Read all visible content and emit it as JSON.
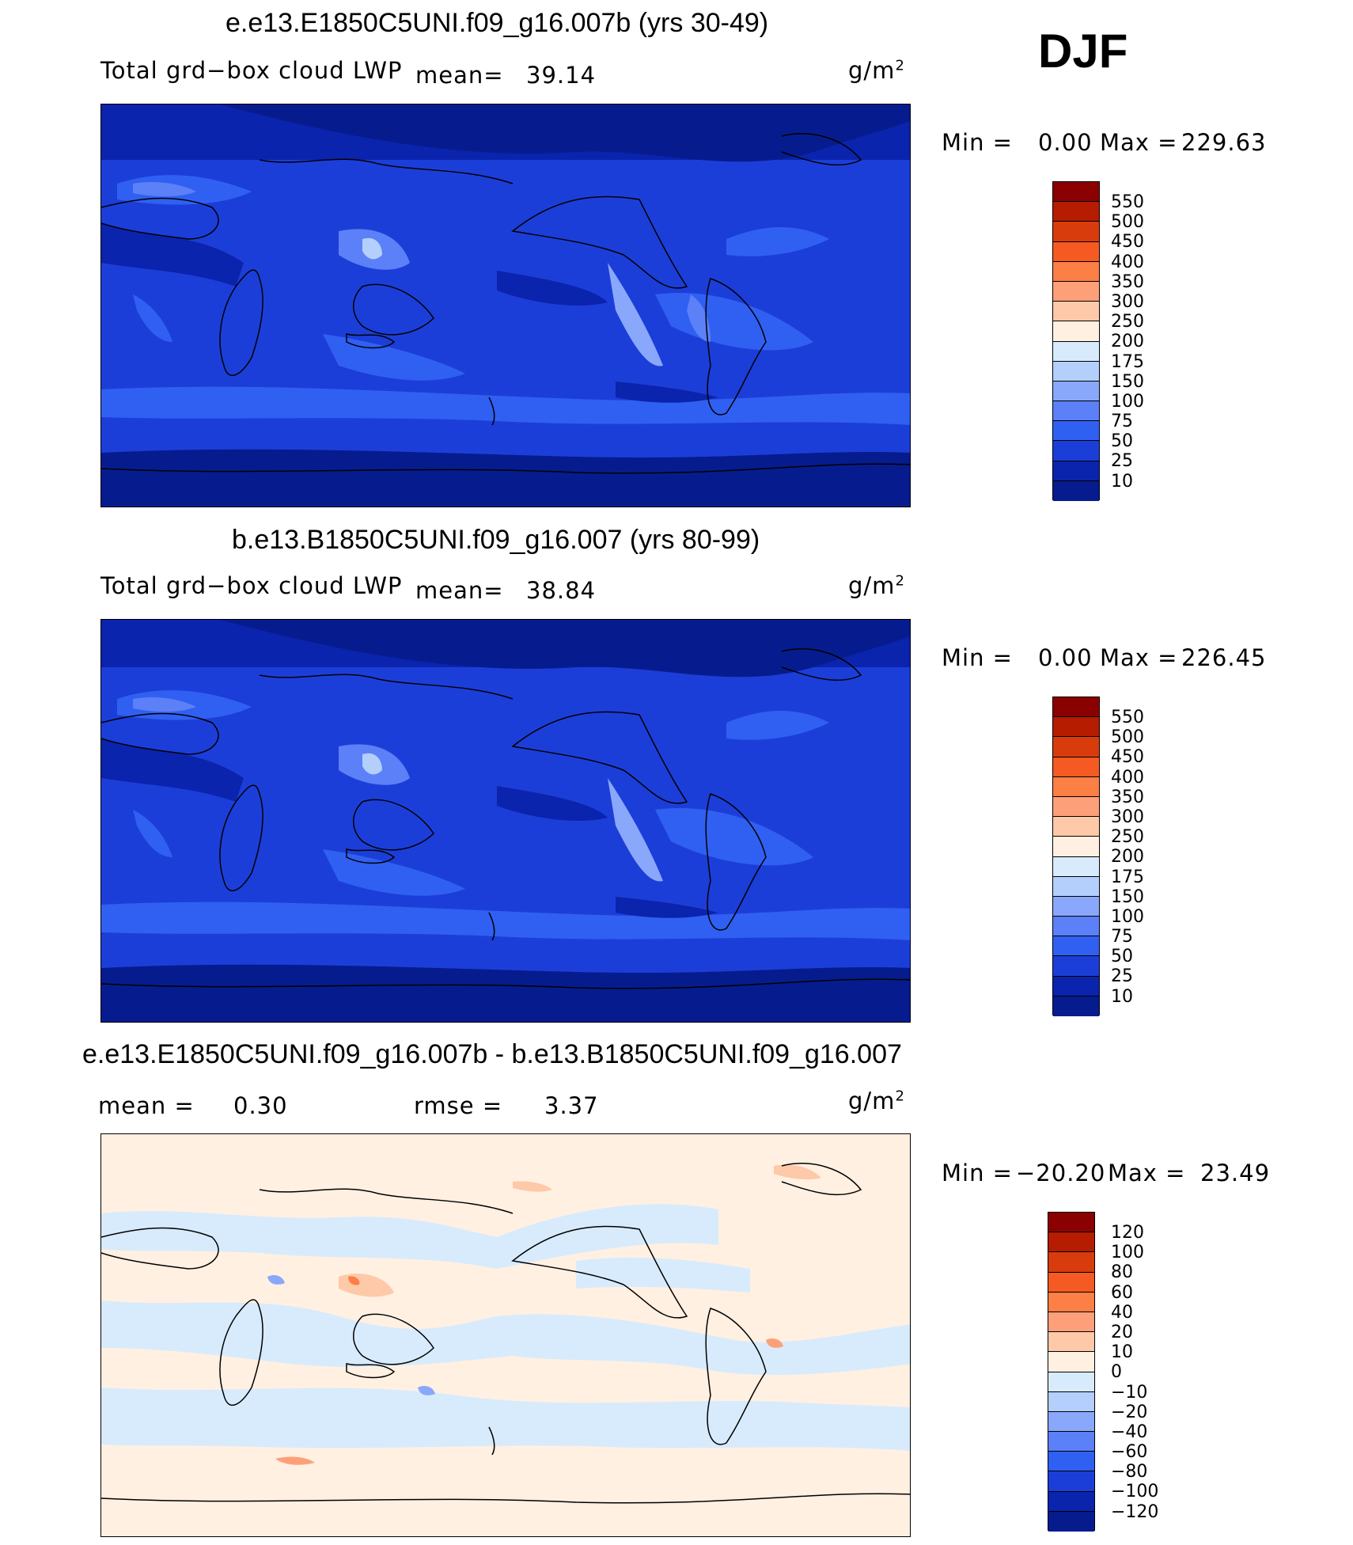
{
  "season": "DJF",
  "units_label": "g/m",
  "units_sup": "2",
  "panels": [
    {
      "title": "e.e13.E1850C5UNI.f09_g16.007b (yrs 30-49)",
      "variable": "Total grd−box cloud LWP",
      "mean_label": "mean=",
      "mean_value": "39.14",
      "min_label": "Min =",
      "min_value": "0.00",
      "max_label": "Max =",
      "max_value": "229.63",
      "colorbar": {
        "levels": [
          "550",
          "500",
          "450",
          "400",
          "350",
          "300",
          "250",
          "200",
          "175",
          "150",
          "100",
          "75",
          "50",
          "25",
          "10"
        ],
        "colors": [
          "#8b0000",
          "#b51c00",
          "#d83c0c",
          "#f45a22",
          "#fc7f45",
          "#fda07a",
          "#fdc9a8",
          "#fff0e2",
          "#d8ebfc",
          "#b4cffc",
          "#89a8fb",
          "#5b80f8",
          "#3060f2",
          "#1c3ed8",
          "#0b24ad",
          "#061c8e"
        ]
      },
      "chart_data": {
        "type": "heatmap",
        "title": "e.e13.E1850C5UNI.f09_g16.007b (yrs 30-49)",
        "variable": "Total grd-box cloud LWP",
        "units": "g/m2",
        "mean": 39.14,
        "min": 0.0,
        "max": 229.63,
        "contour_levels": [
          10,
          25,
          50,
          75,
          100,
          150,
          175,
          200,
          250,
          300,
          350,
          400,
          450,
          500,
          550
        ]
      }
    },
    {
      "title": "b.e13.B1850C5UNI.f09_g16.007 (yrs 80-99)",
      "variable": "Total grd−box cloud LWP",
      "mean_label": "mean=",
      "mean_value": "38.84",
      "min_label": "Min =",
      "min_value": "0.00",
      "max_label": "Max =",
      "max_value": "226.45",
      "colorbar": {
        "levels": [
          "550",
          "500",
          "450",
          "400",
          "350",
          "300",
          "250",
          "200",
          "175",
          "150",
          "100",
          "75",
          "50",
          "25",
          "10"
        ],
        "colors": [
          "#8b0000",
          "#b51c00",
          "#d83c0c",
          "#f45a22",
          "#fc7f45",
          "#fda07a",
          "#fdc9a8",
          "#fff0e2",
          "#d8ebfc",
          "#b4cffc",
          "#89a8fb",
          "#5b80f8",
          "#3060f2",
          "#1c3ed8",
          "#0b24ad",
          "#061c8e"
        ]
      },
      "chart_data": {
        "type": "heatmap",
        "title": "b.e13.B1850C5UNI.f09_g16.007 (yrs 80-99)",
        "variable": "Total grd-box cloud LWP",
        "units": "g/m2",
        "mean": 38.84,
        "min": 0.0,
        "max": 226.45,
        "contour_levels": [
          10,
          25,
          50,
          75,
          100,
          150,
          175,
          200,
          250,
          300,
          350,
          400,
          450,
          500,
          550
        ]
      }
    },
    {
      "title": "e.e13.E1850C5UNI.f09_g16.007b - b.e13.B1850C5UNI.f09_g16.007",
      "mean_label": "mean =",
      "mean_value": "0.30",
      "rmse_label": "rmse =",
      "rmse_value": "3.37",
      "min_label": "Min =",
      "min_value": "−20.20",
      "max_label": "Max =",
      "max_value": "23.49",
      "colorbar": {
        "levels": [
          "120",
          "100",
          "80",
          "60",
          "40",
          "20",
          "10",
          "0",
          "−10",
          "−20",
          "−40",
          "−60",
          "−80",
          "−100",
          "−120"
        ],
        "colors": [
          "#8b0000",
          "#b51c00",
          "#d83c0c",
          "#f45a22",
          "#fc7f45",
          "#fda07a",
          "#fdc9a8",
          "#fff0e2",
          "#d8ebfc",
          "#b4cffc",
          "#89a8fb",
          "#5b80f8",
          "#3060f2",
          "#1c3ed8",
          "#0b24ad",
          "#061c8e"
        ]
      },
      "chart_data": {
        "type": "heatmap",
        "title": "e.e13.E1850C5UNI.f09_g16.007b - b.e13.B1850C5UNI.f09_g16.007",
        "units": "g/m2",
        "mean": 0.3,
        "rmse": 3.37,
        "min": -20.2,
        "max": 23.49,
        "contour_levels": [
          -120,
          -100,
          -80,
          -60,
          -40,
          -20,
          -10,
          0,
          10,
          20,
          40,
          60,
          80,
          100,
          120
        ]
      }
    }
  ],
  "chart_data": [
    {
      "type": "heatmap",
      "title": "e.e13.E1850C5UNI.f09_g16.007b (yrs 30-49)",
      "variable": "Total grd-box cloud LWP",
      "units": "g/m2",
      "mean": 39.14,
      "min": 0.0,
      "max": 229.63,
      "contour_levels": [
        10,
        25,
        50,
        75,
        100,
        150,
        175,
        200,
        250,
        300,
        350,
        400,
        450,
        500,
        550
      ]
    },
    {
      "type": "heatmap",
      "title": "b.e13.B1850C5UNI.f09_g16.007 (yrs 80-99)",
      "variable": "Total grd-box cloud LWP",
      "units": "g/m2",
      "mean": 38.84,
      "min": 0.0,
      "max": 226.45,
      "contour_levels": [
        10,
        25,
        50,
        75,
        100,
        150,
        175,
        200,
        250,
        300,
        350,
        400,
        450,
        500,
        550
      ]
    },
    {
      "type": "heatmap",
      "title": "e.e13.E1850C5UNI.f09_g16.007b - b.e13.B1850C5UNI.f09_g16.007",
      "units": "g/m2",
      "mean": 0.3,
      "rmse": 3.37,
      "min": -20.2,
      "max": 23.49,
      "contour_levels": [
        -120,
        -100,
        -80,
        -60,
        -40,
        -20,
        -10,
        0,
        10,
        20,
        40,
        60,
        80,
        100,
        120
      ]
    }
  ]
}
